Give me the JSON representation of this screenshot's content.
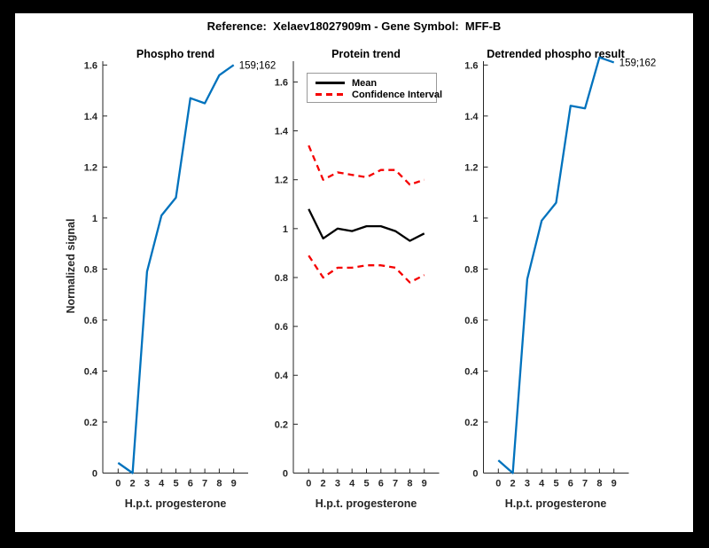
{
  "figure_title": "Reference:  Xelaev18027909m - Gene Symbol:  MFF-B",
  "colors": {
    "background": "#000000",
    "canvas": "#ffffff",
    "axis": "#262626",
    "blue_line": "#0072BD",
    "red_dashed": "#F50000",
    "black_line": "#000000"
  },
  "legend": {
    "items": [
      {
        "label": "Mean",
        "color": "#000000",
        "style": "solid"
      },
      {
        "label": "Confidence Interval",
        "color": "#F50000",
        "style": "dashed"
      }
    ]
  },
  "chart_data": [
    {
      "type": "line",
      "title": "Phospho trend",
      "xlabel": "H.p.t. progesterone",
      "ylabel": "Normalized signal",
      "x_tick_labels": [
        "0",
        "2",
        "3",
        "4",
        "5",
        "6",
        "7",
        "8",
        "9"
      ],
      "y_tick_labels": [
        "0",
        "0.2",
        "0.4",
        "0.6",
        "0.8",
        "1",
        "1.2",
        "1.4",
        "1.6"
      ],
      "ylim": [
        0,
        1.615
      ],
      "annotation": "159;162",
      "series": [
        {
          "name": "Phospho signal",
          "data_name": "phospho-trend-line",
          "color": "#0072BD",
          "style": "solid",
          "values": [
            0.04,
            0.0,
            0.79,
            1.01,
            1.08,
            1.47,
            1.45,
            1.56,
            1.6
          ]
        }
      ]
    },
    {
      "type": "line",
      "title": "Protein trend",
      "xlabel": "H.p.t. progesterone",
      "ylabel": "",
      "x_tick_labels": [
        "0",
        "2",
        "3",
        "4",
        "5",
        "6",
        "7",
        "8",
        "9"
      ],
      "y_tick_labels": [
        "0",
        "0.2",
        "0.4",
        "0.6",
        "0.8",
        "1",
        "1.2",
        "1.4",
        "1.6"
      ],
      "ylim": [
        0,
        1.685
      ],
      "annotation": "",
      "series": [
        {
          "name": "Mean",
          "data_name": "mean-line",
          "color": "#000000",
          "style": "solid",
          "values": [
            1.08,
            0.96,
            1.0,
            0.99,
            1.01,
            1.01,
            0.99,
            0.95,
            0.98
          ]
        },
        {
          "name": "Confidence Interval upper",
          "data_name": "confidence-upper-line",
          "color": "#F50000",
          "style": "dashed",
          "values": [
            1.34,
            1.2,
            1.23,
            1.22,
            1.21,
            1.24,
            1.24,
            1.18,
            1.2
          ]
        },
        {
          "name": "Confidence Interval lower",
          "data_name": "confidence-lower-line",
          "color": "#F50000",
          "style": "dashed",
          "values": [
            0.89,
            0.8,
            0.84,
            0.84,
            0.85,
            0.85,
            0.84,
            0.78,
            0.81
          ]
        }
      ]
    },
    {
      "type": "line",
      "title": "Detrended phospho result",
      "xlabel": "H.p.t. progesterone",
      "ylabel": "",
      "x_tick_labels": [
        "0",
        "2",
        "3",
        "4",
        "5",
        "6",
        "7",
        "8",
        "9"
      ],
      "y_tick_labels": [
        "0",
        "0.2",
        "0.4",
        "0.6",
        "0.8",
        "1",
        "1.2",
        "1.4",
        "1.6"
      ],
      "ylim": [
        0,
        1.615
      ],
      "annotation": "159;162",
      "series": [
        {
          "name": "Detrended phospho signal",
          "data_name": "detrended-line",
          "color": "#0072BD",
          "style": "solid",
          "values": [
            0.05,
            0.0,
            0.76,
            0.99,
            1.06,
            1.44,
            1.43,
            1.63,
            1.61
          ]
        }
      ]
    }
  ]
}
